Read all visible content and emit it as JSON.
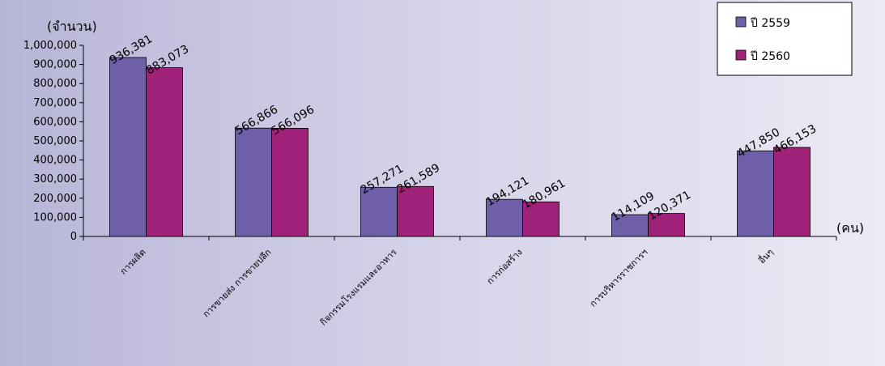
{
  "chart_data": {
    "type": "bar",
    "ylabel": "(จำนวน)",
    "xunit": "(คน)",
    "ylim": [
      0,
      1000000
    ],
    "ytick_step": 100000,
    "ytick_labels": [
      "0",
      "100,000",
      "200,000",
      "300,000",
      "400,000",
      "500,000",
      "600,000",
      "700,000",
      "800,000",
      "900,000",
      "1,000,000"
    ],
    "categories": [
      "การผลิต",
      "การขายส่ง การขายปลีก",
      "กิจกรรมโรงแรมและอาหาร",
      "การก่อสร้าง",
      "การบริหารราชการฯ",
      "อื่นๆ"
    ],
    "series": [
      {
        "name": "ปี 2559",
        "color": "#6f5fa8",
        "values": [
          936381,
          566866,
          257271,
          194121,
          114109,
          447850
        ],
        "labels": [
          "936,381",
          "566,866",
          "257,271",
          "194,121",
          "114,109",
          "447,850"
        ]
      },
      {
        "name": "ปี 2560",
        "color": "#a02278",
        "values": [
          883073,
          566096,
          261589,
          180961,
          120371,
          466153
        ],
        "labels": [
          "883,073",
          "566,096",
          "261,589",
          "180,961",
          "120,371",
          "466,153"
        ]
      }
    ],
    "legend_position": "top-right",
    "grid": false
  }
}
